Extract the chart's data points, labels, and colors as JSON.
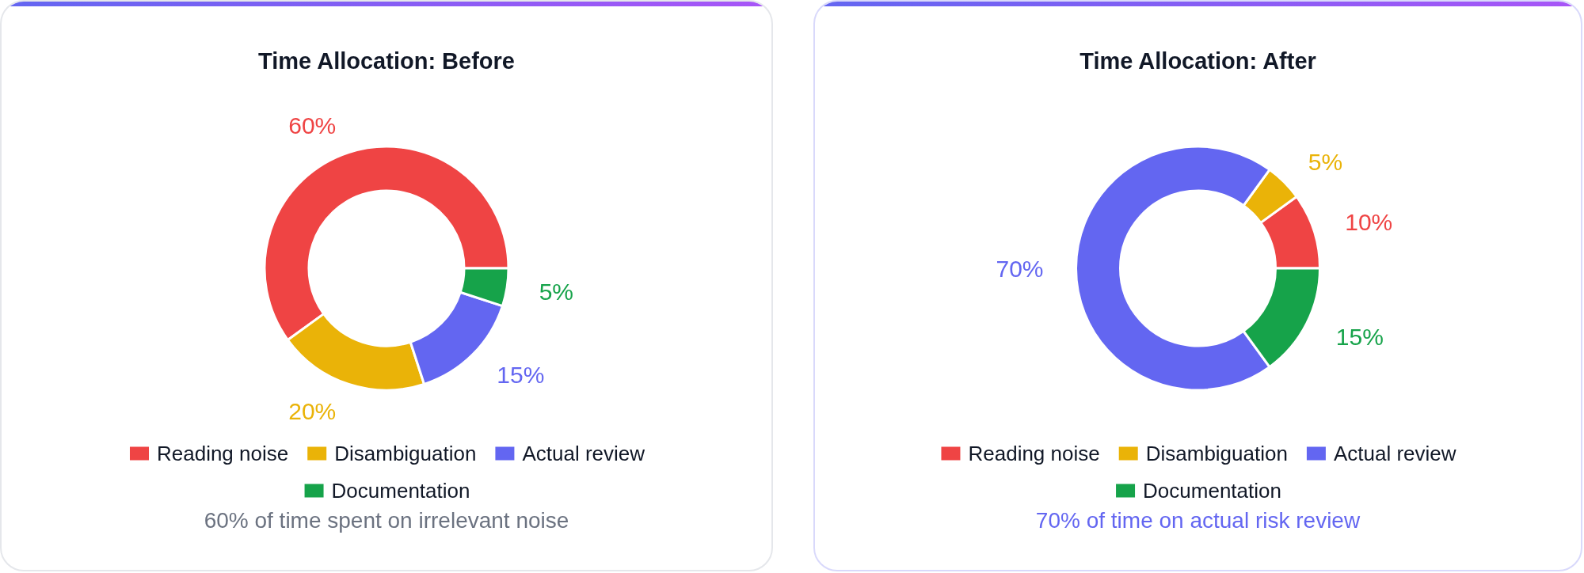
{
  "chart_data": [
    {
      "type": "donut",
      "title": "Time Allocation: Before",
      "categories": [
        "Reading noise",
        "Disambiguation",
        "Actual review",
        "Documentation"
      ],
      "values": [
        60,
        20,
        15,
        5
      ],
      "colors": [
        "#ef4444",
        "#eab308",
        "#6366f1",
        "#16a34a"
      ],
      "value_labels": [
        "60%",
        "20%",
        "15%",
        "5%"
      ],
      "legend": "bottom",
      "annotations": [
        "60% of time spent on irrelevant noise"
      ]
    },
    {
      "type": "donut",
      "title": "Time Allocation: After",
      "categories": [
        "Reading noise",
        "Disambiguation",
        "Actual review",
        "Documentation"
      ],
      "values": [
        10,
        5,
        70,
        15
      ],
      "colors": [
        "#ef4444",
        "#eab308",
        "#6366f1",
        "#16a34a"
      ],
      "value_labels": [
        "10%",
        "5%",
        "70%",
        "15%"
      ],
      "legend": "bottom",
      "annotations": [
        "70% of time on actual risk review"
      ]
    }
  ]
}
